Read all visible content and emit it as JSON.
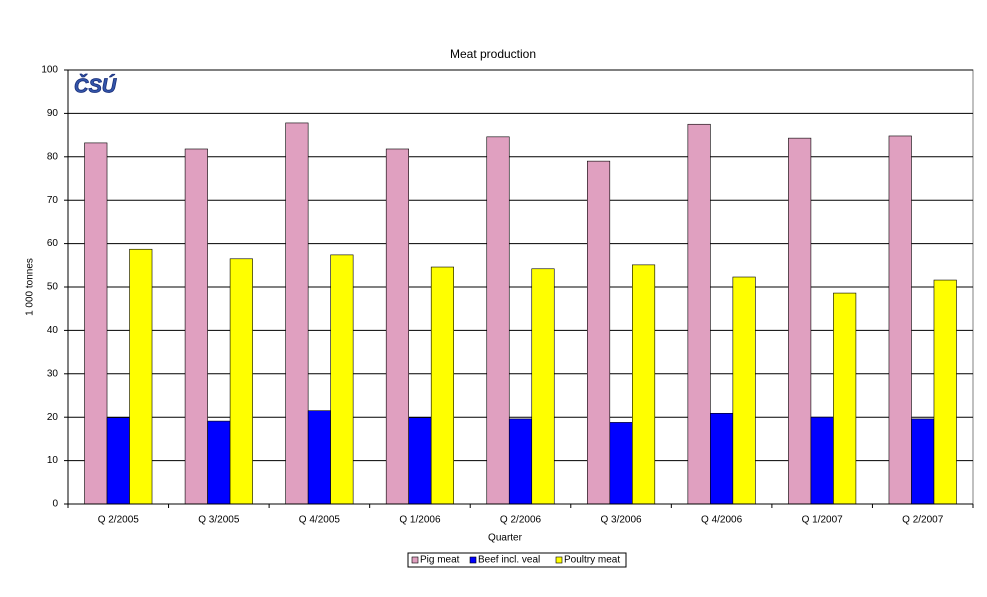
{
  "chart_data": {
    "type": "bar",
    "title": "Meat production",
    "x_label": "Quarter",
    "y_label": "1 000 tonnes",
    "categories": [
      "Q 2/2005",
      "Q 3/2005",
      "Q 4/2005",
      "Q 1/2006",
      "Q 2/2006",
      "Q 3/2006",
      "Q 4/2006",
      "Q 1/2007",
      "Q 2/2007"
    ],
    "series": [
      {
        "name": "Pig meat",
        "color": "#e0a0c0",
        "values": [
          83.2,
          81.8,
          87.8,
          81.8,
          84.6,
          79.0,
          87.5,
          84.3,
          84.8
        ]
      },
      {
        "name": "Beef incl. veal",
        "color": "#0000ff",
        "values": [
          19.9,
          19.1,
          21.5,
          19.9,
          19.6,
          18.8,
          20.9,
          20.0,
          19.6
        ]
      },
      {
        "name": "Poultry meat",
        "color": "#ffff00",
        "values": [
          58.7,
          56.5,
          57.4,
          54.6,
          54.2,
          55.1,
          52.3,
          48.6,
          51.6
        ]
      }
    ],
    "ylim": [
      0,
      100
    ],
    "yticks": [
      0,
      10,
      20,
      30,
      40,
      50,
      60,
      70,
      80,
      90,
      100
    ],
    "grid": true,
    "legend": "bottom"
  },
  "logo": "ČSÚ"
}
